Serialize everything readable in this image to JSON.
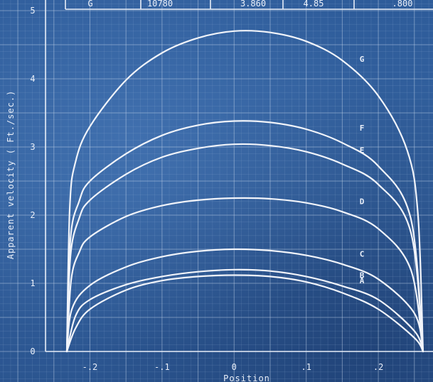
{
  "header_table": {
    "cells": [
      "G",
      "10780",
      "3.860",
      "4.85",
      ".800"
    ]
  },
  "chart_data": {
    "type": "line",
    "title": "",
    "xlabel": "Position",
    "ylabel": "Apparent velocity ( Ft./sec.)",
    "xlim": [
      -0.26,
      0.265
    ],
    "ylim": [
      0,
      5
    ],
    "x_ticks": [
      {
        "value": -0.2,
        "label": "-.2"
      },
      {
        "value": -0.1,
        "label": "-.1"
      },
      {
        "value": 0,
        "label": "0"
      },
      {
        "value": 0.1,
        "label": ".1"
      },
      {
        "value": 0.2,
        "label": ".2"
      }
    ],
    "y_ticks": [
      {
        "value": 0,
        "label": "0"
      },
      {
        "value": 1,
        "label": "1"
      },
      {
        "value": 2,
        "label": "2"
      },
      {
        "value": 3,
        "label": "3"
      },
      {
        "value": 4,
        "label": "4"
      },
      {
        "value": 5,
        "label": "5"
      }
    ],
    "grid": true,
    "line_color": "#f1f4fa",
    "series": [
      {
        "name": "A",
        "x": [
          -0.232,
          -0.22,
          -0.2,
          -0.15,
          -0.1,
          -0.05,
          0,
          0.05,
          0.1,
          0.15,
          0.2,
          0.25,
          0.262
        ],
        "y": [
          0,
          0.34,
          0.62,
          0.9,
          1.04,
          1.1,
          1.12,
          1.1,
          1.02,
          0.86,
          0.62,
          0.2,
          0
        ]
      },
      {
        "name": "B",
        "x": [
          -0.232,
          -0.22,
          -0.2,
          -0.15,
          -0.1,
          -0.05,
          0,
          0.05,
          0.1,
          0.15,
          0.2,
          0.25,
          0.262
        ],
        "y": [
          0,
          0.52,
          0.76,
          0.98,
          1.1,
          1.17,
          1.2,
          1.18,
          1.1,
          0.96,
          0.76,
          0.3,
          0
        ]
      },
      {
        "name": "C",
        "x": [
          -0.232,
          -0.225,
          -0.2,
          -0.15,
          -0.1,
          -0.05,
          0,
          0.05,
          0.1,
          0.15,
          0.2,
          0.25,
          0.262
        ],
        "y": [
          0,
          0.62,
          0.97,
          1.24,
          1.39,
          1.47,
          1.5,
          1.48,
          1.41,
          1.28,
          1.06,
          0.56,
          0
        ]
      },
      {
        "name": "D",
        "x": [
          -0.232,
          -0.226,
          -0.215,
          -0.2,
          -0.15,
          -0.1,
          -0.05,
          0,
          0.05,
          0.1,
          0.15,
          0.2,
          0.245,
          0.262
        ],
        "y": [
          0,
          1.05,
          1.45,
          1.68,
          1.98,
          2.14,
          2.22,
          2.25,
          2.24,
          2.18,
          2.05,
          1.8,
          1.2,
          0
        ]
      },
      {
        "name": "E",
        "x": [
          -0.232,
          -0.227,
          -0.215,
          -0.2,
          -0.15,
          -0.1,
          -0.05,
          0,
          0.05,
          0.1,
          0.15,
          0.2,
          0.245,
          0.262
        ],
        "y": [
          0,
          1.4,
          1.95,
          2.22,
          2.6,
          2.85,
          2.98,
          3.04,
          3.02,
          2.93,
          2.75,
          2.45,
          1.75,
          0
        ]
      },
      {
        "name": "F",
        "x": [
          -0.232,
          -0.227,
          -0.215,
          -0.2,
          -0.15,
          -0.1,
          -0.05,
          0,
          0.05,
          0.1,
          0.15,
          0.2,
          0.245,
          0.262
        ],
        "y": [
          0,
          1.65,
          2.2,
          2.5,
          2.9,
          3.17,
          3.32,
          3.38,
          3.36,
          3.26,
          3.06,
          2.72,
          1.95,
          0
        ]
      },
      {
        "name": "G",
        "x": [
          -0.232,
          -0.228,
          -0.22,
          -0.2,
          -0.15,
          -0.1,
          -0.05,
          0,
          0.05,
          0.1,
          0.15,
          0.2,
          0.24,
          0.255,
          0.262
        ],
        "y": [
          0,
          2.1,
          2.78,
          3.3,
          3.98,
          4.38,
          4.6,
          4.7,
          4.68,
          4.55,
          4.27,
          3.75,
          2.95,
          2.0,
          0
        ]
      }
    ]
  }
}
